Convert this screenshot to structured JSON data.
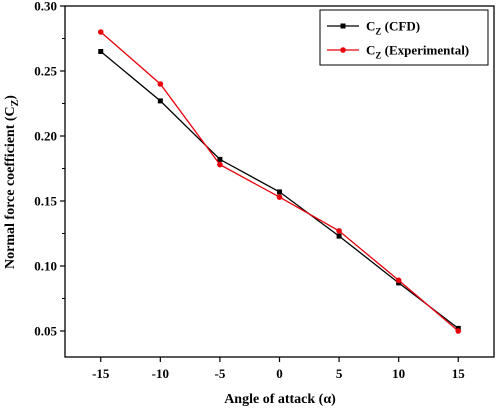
{
  "chart_data": {
    "type": "line",
    "xlabel": "Angle of attack (α)",
    "ylabel": "Normal force coefficient (C",
    "ylabel_sub": "Z",
    "ylabel_end": ")",
    "x": [
      -15,
      -10,
      -5,
      0,
      5,
      10,
      15
    ],
    "x_ticks": [
      "-15",
      "-10",
      "-5",
      "0",
      "5",
      "10",
      "15"
    ],
    "y_ticks": [
      "0.05",
      "0.10",
      "0.15",
      "0.20",
      "0.25",
      "0.30"
    ],
    "xlim": [
      -18,
      18
    ],
    "ylim": [
      0.03,
      0.3
    ],
    "grid": false,
    "legend_position": "top-right",
    "series": [
      {
        "name": "C",
        "name_sub": "Z",
        "name_suffix": " (CFD)",
        "color": "#000000",
        "marker": "square",
        "values": [
          0.265,
          0.227,
          0.182,
          0.157,
          0.123,
          0.087,
          0.052
        ]
      },
      {
        "name": "C",
        "name_sub": "Z",
        "name_suffix": " (Experimental)",
        "color": "#e8000b",
        "marker": "circle",
        "values": [
          0.28,
          0.24,
          0.178,
          0.153,
          0.127,
          0.089,
          0.05
        ]
      }
    ]
  }
}
